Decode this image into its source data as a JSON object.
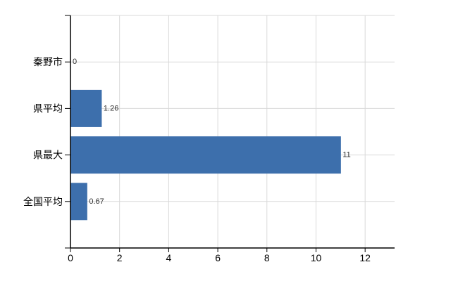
{
  "chart_data": {
    "type": "bar",
    "orientation": "horizontal",
    "title": "",
    "xlabel": "",
    "ylabel": "",
    "categories": [
      "秦野市",
      "県平均",
      "県最大",
      "全国平均"
    ],
    "values": [
      0,
      1.26,
      11,
      0.67
    ],
    "value_labels": [
      "0",
      "1.26",
      "11",
      "0.67"
    ],
    "x_ticks": [
      0,
      2,
      4,
      6,
      8,
      10,
      12
    ],
    "x_tick_labels": [
      "0",
      "2",
      "4",
      "6",
      "8",
      "10",
      "12"
    ],
    "xlim": [
      0,
      13.2
    ],
    "grid": true,
    "legend": null,
    "colors": {
      "bar": "#3d6fac",
      "grid": "#d9d9d9",
      "axis": "#000000",
      "category_label": "#000000",
      "tick_label": "#000000",
      "value_label": "#303030",
      "background": "#ffffff"
    }
  }
}
